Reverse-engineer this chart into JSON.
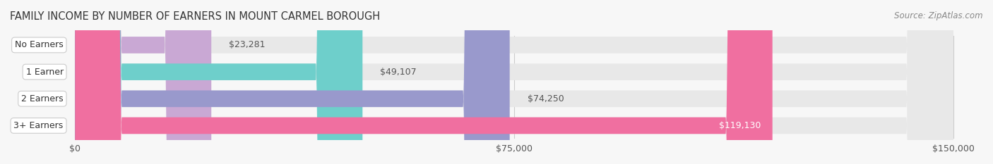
{
  "title": "FAMILY INCOME BY NUMBER OF EARNERS IN MOUNT CARMEL BOROUGH",
  "source": "Source: ZipAtlas.com",
  "categories": [
    "No Earners",
    "1 Earner",
    "2 Earners",
    "3+ Earners"
  ],
  "values": [
    23281,
    49107,
    74250,
    119130
  ],
  "labels": [
    "$23,281",
    "$49,107",
    "$74,250",
    "$119,130"
  ],
  "bar_colors": [
    "#c9a8d4",
    "#6ecfcb",
    "#9999cc",
    "#f06fa0"
  ],
  "bar_bg_color": "#f0f0f0",
  "background_color": "#f7f7f7",
  "xmax": 150000,
  "xticks": [
    0,
    75000,
    150000
  ],
  "xtick_labels": [
    "$0",
    "$75,000",
    "$150,000"
  ],
  "title_fontsize": 10.5,
  "label_fontsize": 9,
  "source_fontsize": 8.5
}
